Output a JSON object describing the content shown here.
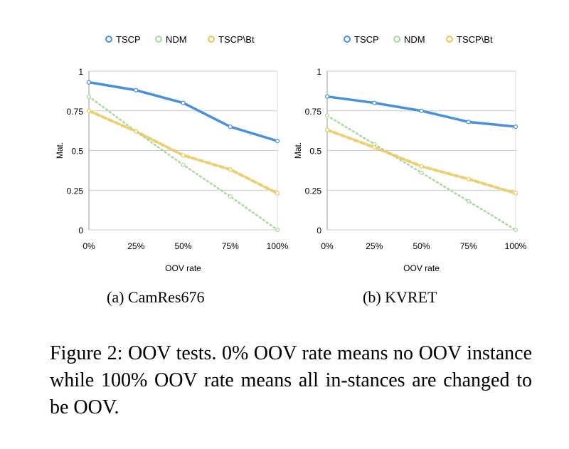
{
  "colors": {
    "tscp": "#4a90d9",
    "ndm": "#a8d99a",
    "tscp_bt": "#e8c75a",
    "grid": "#cccccc"
  },
  "chart_data": [
    {
      "type": "line",
      "title": "",
      "xlabel": "OOV rate",
      "ylabel": "Mat.",
      "categories": [
        "0%",
        "25%",
        "50%",
        "75%",
        "100%"
      ],
      "yticks": [
        "0",
        "0.25",
        "0.5",
        "0.75",
        "1"
      ],
      "ylim": [
        0,
        1
      ],
      "legend": [
        "TSCP",
        "NDM",
        "TSCP\\Bt"
      ],
      "legend_position": "top",
      "series": [
        {
          "name": "TSCP",
          "values": [
            0.93,
            0.88,
            0.8,
            0.65,
            0.56
          ]
        },
        {
          "name": "NDM",
          "values": [
            0.84,
            0.62,
            0.41,
            0.21,
            0.0
          ]
        },
        {
          "name": "TSCP\\Bt",
          "values": [
            0.75,
            0.62,
            0.47,
            0.38,
            0.23
          ]
        }
      ],
      "caption": "(a)  CamRes676"
    },
    {
      "type": "line",
      "title": "",
      "xlabel": "OOV rate",
      "ylabel": "Mat.",
      "categories": [
        "0%",
        "25%",
        "50%",
        "75%",
        "100%"
      ],
      "yticks": [
        "0",
        "0.25",
        "0.5",
        "0.75",
        "1"
      ],
      "ylim": [
        0,
        1
      ],
      "legend": [
        "TSCP",
        "NDM",
        "TSCP\\Bt"
      ],
      "legend_position": "top",
      "series": [
        {
          "name": "TSCP",
          "values": [
            0.84,
            0.8,
            0.75,
            0.68,
            0.65
          ]
        },
        {
          "name": "NDM",
          "values": [
            0.72,
            0.54,
            0.36,
            0.18,
            0.0
          ]
        },
        {
          "name": "TSCP\\Bt",
          "values": [
            0.63,
            0.52,
            0.4,
            0.32,
            0.23
          ]
        }
      ],
      "caption": "(b)  KVRET"
    }
  ],
  "figure_caption": "Figure 2:  OOV tests.  0% OOV rate means no OOV instance while 100% OOV rate means all in-stances are changed to be OOV."
}
